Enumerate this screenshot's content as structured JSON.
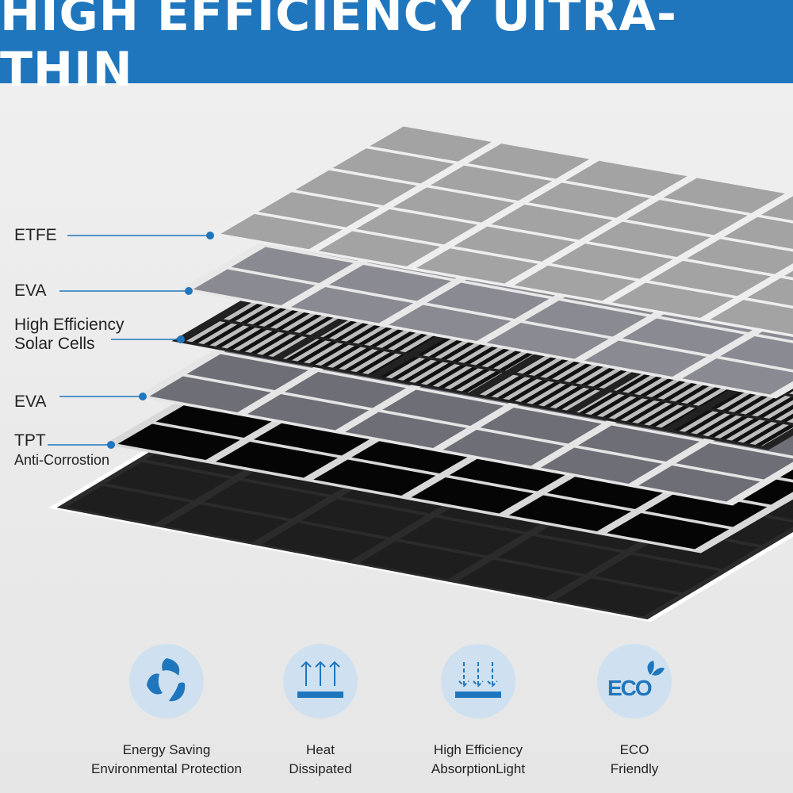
{
  "title": "HIGH EFFICIENCY UlTRA-THIN",
  "colors": {
    "brand": "#1f76bd",
    "icon_bg": "#cfe1f0",
    "icon": "#1f76bd"
  },
  "layers": [
    {
      "label": "ETFE"
    },
    {
      "label": "EVA"
    },
    {
      "label": "High Efficiency",
      "label2": "Solar Cells"
    },
    {
      "label": "EVA"
    },
    {
      "label": "TPT",
      "label2": "Anti-Corrostion"
    }
  ],
  "features": [
    {
      "icon": "recycle-leaves-icon",
      "line1": "Energy Saving",
      "line2": "Environmental Protection"
    },
    {
      "icon": "heat-up-arrows-icon",
      "line1": "Heat",
      "line2": "Dissipated"
    },
    {
      "icon": "light-down-arrows-icon",
      "line1": "High Efficiency",
      "line2": "AbsorptionLight"
    },
    {
      "icon": "eco-leaf-icon",
      "line1": "ECO",
      "line2": "Friendly",
      "logo_text": "ECO"
    }
  ]
}
